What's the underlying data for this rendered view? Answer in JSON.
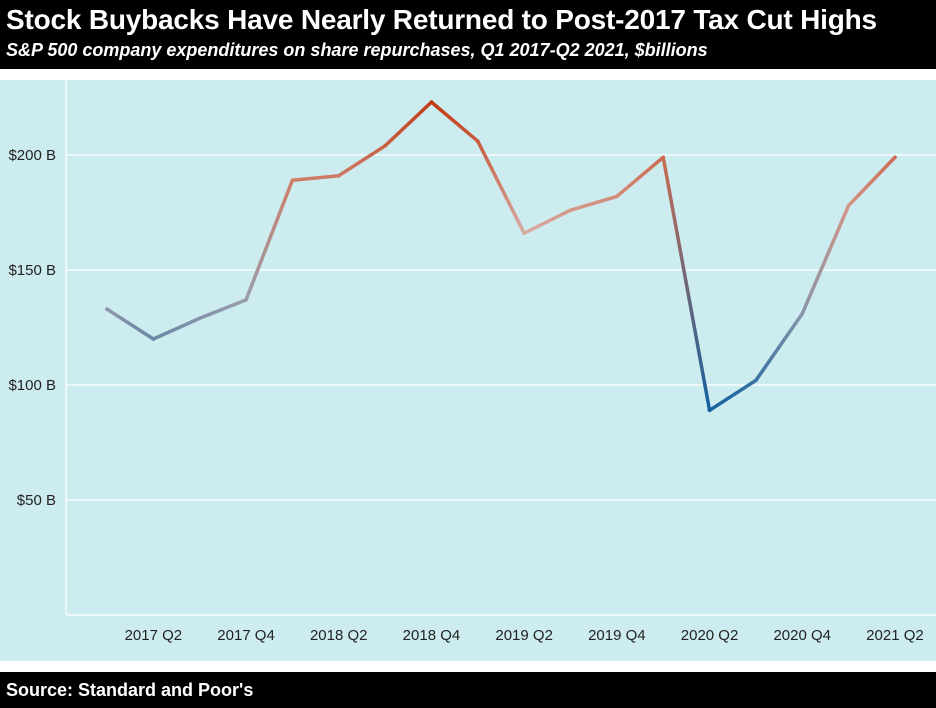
{
  "header": {
    "title": "Stock Buybacks Have Nearly Returned to Post-2017 Tax Cut Highs",
    "subtitle": "S&P 500 company expenditures on share repurchases, Q1 2017-Q2 2021, $billions"
  },
  "footer": {
    "source": "Source: Standard and Poor's"
  },
  "colors": {
    "header_bg": "#000000",
    "plot_bg": "#cdecef",
    "grid": "#ffffff",
    "low": "#1462a0",
    "mid": "#d9b8b0",
    "high": "#c23b16"
  },
  "chart_data": {
    "type": "line",
    "title": "Stock Buybacks Have Nearly Returned to Post-2017 Tax Cut Highs",
    "subtitle": "S&P 500 company expenditures on share repurchases, Q1 2017-Q2 2021, $billions",
    "x": [
      "2017 Q1",
      "2017 Q2",
      "2017 Q3",
      "2017 Q4",
      "2018 Q1",
      "2018 Q2",
      "2018 Q3",
      "2018 Q4",
      "2019 Q1",
      "2019 Q2",
      "2019 Q3",
      "2019 Q4",
      "2020 Q1",
      "2020 Q2",
      "2020 Q3",
      "2020 Q4",
      "2021 Q1",
      "2021 Q2"
    ],
    "xtick_labels": [
      "2017 Q2",
      "2017 Q4",
      "2018 Q2",
      "2018 Q4",
      "2019 Q2",
      "2019 Q4",
      "2020 Q2",
      "2020 Q4",
      "2021 Q2"
    ],
    "series": [
      {
        "values": [
          133,
          120,
          129,
          137,
          189,
          191,
          204,
          223,
          206,
          166,
          176,
          182,
          199,
          89,
          102,
          131,
          178,
          199
        ]
      }
    ],
    "ytick_labels": [
      "$50 B",
      "$100 B",
      "$150 B",
      "$200 B"
    ],
    "yticks": [
      50,
      100,
      150,
      200
    ],
    "ylim": [
      0,
      235
    ],
    "grid": "horizontal",
    "legend": "none"
  }
}
